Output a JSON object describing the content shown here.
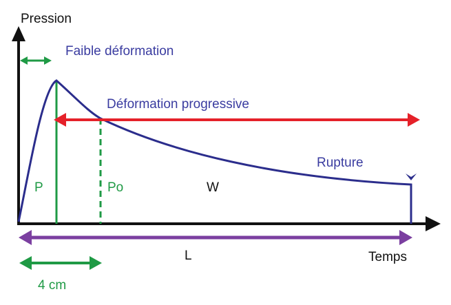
{
  "axes": {
    "y_label": "Pression",
    "x_label": "Temps"
  },
  "annotations": {
    "faible": "Faible déformation",
    "progressive": "Déformation progressive",
    "rupture": "Rupture"
  },
  "regions": {
    "p": "P",
    "po": "Po",
    "w": "W",
    "l": "L",
    "scale": "4 cm"
  }
}
